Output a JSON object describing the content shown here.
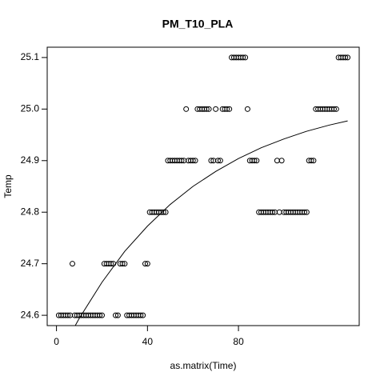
{
  "chart_data": {
    "type": "scatter",
    "title": "PM_T10_PLA",
    "x_label": "as.matrix(Time)",
    "y_label": "Temp",
    "x": [
      1,
      2,
      3,
      4,
      5,
      6,
      7,
      8,
      9,
      10,
      11,
      12,
      13,
      14,
      15,
      16,
      17,
      18,
      19,
      20,
      21,
      22,
      23,
      24,
      25,
      26,
      27,
      28,
      29,
      30,
      31,
      32,
      33,
      34,
      35,
      36,
      37,
      38,
      39,
      40,
      41,
      42,
      43,
      44,
      45,
      46,
      47,
      48,
      49,
      50,
      51,
      52,
      53,
      54,
      55,
      56,
      57,
      58,
      59,
      60,
      61,
      62,
      63,
      64,
      65,
      66,
      67,
      68,
      69,
      70,
      71,
      72,
      73,
      74,
      75,
      76,
      77,
      78,
      79,
      80,
      81,
      82,
      83,
      84,
      85,
      86,
      87,
      88,
      89,
      90,
      91,
      92,
      93,
      94,
      95,
      96,
      97,
      98,
      99,
      100,
      101,
      102,
      103,
      104,
      105,
      106,
      107,
      108,
      109,
      110,
      111,
      112,
      113,
      114,
      115,
      116,
      117,
      118,
      119,
      120,
      121,
      122,
      123,
      124,
      125,
      126,
      127,
      128
    ],
    "y": [
      24.6,
      24.6,
      24.6,
      24.6,
      24.6,
      24.6,
      24.7,
      24.6,
      24.6,
      24.6,
      24.6,
      24.6,
      24.6,
      24.6,
      24.6,
      24.6,
      24.6,
      24.6,
      24.6,
      24.6,
      24.7,
      24.7,
      24.7,
      24.7,
      24.7,
      24.6,
      24.6,
      24.7,
      24.7,
      24.7,
      24.6,
      24.6,
      24.6,
      24.6,
      24.6,
      24.6,
      24.6,
      24.6,
      24.7,
      24.7,
      24.8,
      24.8,
      24.8,
      24.8,
      24.8,
      24.8,
      24.8,
      24.8,
      24.9,
      24.9,
      24.9,
      24.9,
      24.9,
      24.9,
      24.9,
      24.9,
      25.0,
      24.9,
      24.9,
      24.9,
      24.9,
      25.0,
      25.0,
      25.0,
      25.0,
      25.0,
      25.0,
      24.9,
      24.9,
      25.0,
      24.9,
      24.9,
      25.0,
      25.0,
      25.0,
      25.0,
      25.1,
      25.1,
      25.1,
      25.1,
      25.1,
      25.1,
      25.1,
      25.0,
      24.9,
      24.9,
      24.9,
      24.9,
      24.8,
      24.8,
      24.8,
      24.8,
      24.8,
      24.8,
      24.8,
      24.8,
      24.9,
      24.8,
      24.9,
      24.8,
      24.8,
      24.8,
      24.8,
      24.8,
      24.8,
      24.8,
      24.8,
      24.8,
      24.8,
      24.8,
      24.9,
      24.9,
      24.9,
      25.0,
      25.0,
      25.0,
      25.0,
      25.0,
      25.0,
      25.0,
      25.0,
      25.0,
      25.0,
      25.1,
      25.1,
      25.1,
      25.1,
      25.1
    ],
    "color": "#000000",
    "curve": {
      "color": "#000000",
      "x": [
        8,
        9,
        10,
        20,
        30,
        40,
        50,
        60,
        70,
        80,
        90,
        100,
        110,
        120,
        128
      ],
      "y": [
        24.578,
        24.586,
        24.594,
        24.664,
        24.724,
        24.773,
        24.815,
        24.85,
        24.879,
        24.904,
        24.925,
        24.942,
        24.957,
        24.969,
        24.977
      ]
    },
    "xlim": [
      -4.08,
      133.08
    ],
    "ylim": [
      24.58,
      25.12
    ],
    "xticks": [
      0,
      40,
      80
    ],
    "yticks": [
      24.6,
      24.7,
      24.8,
      24.9,
      {
        "value": 25,
        "label": "25.0"
      },
      25.1
    ]
  }
}
